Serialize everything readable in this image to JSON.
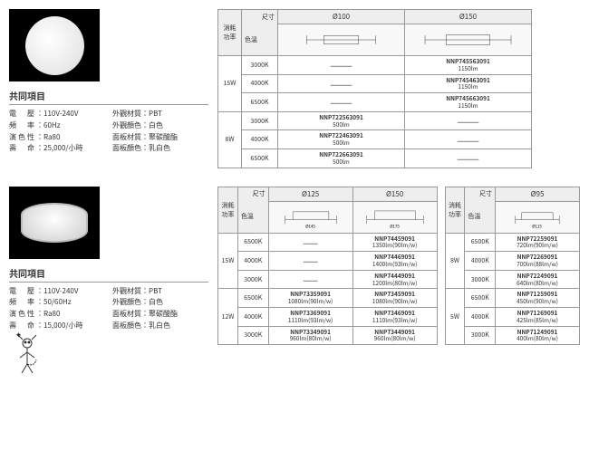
{
  "common_title": "共同項目",
  "specs1": {
    "voltage": {
      "label": "電　壓",
      "value": "110V-240V"
    },
    "freq": {
      "label": "頻　率",
      "value": "60Hz"
    },
    "cri": {
      "label": "演色性",
      "value": "Ra80"
    },
    "life": {
      "label": "壽　命",
      "value": "25,000/小時"
    },
    "mat_ext": {
      "label": "外觀材質",
      "value": "PBT"
    },
    "col_ext": {
      "label": "外觀顏色",
      "value": "白色"
    },
    "mat_panel": {
      "label": "面板材質",
      "value": "聚碳酸酯"
    },
    "col_panel": {
      "label": "面板顏色",
      "value": "乳白色"
    }
  },
  "specs2": {
    "voltage": {
      "label": "電　壓",
      "value": "110V-240V"
    },
    "freq": {
      "label": "頻　率",
      "value": "50/60Hz"
    },
    "cri": {
      "label": "演色性",
      "value": "Ra80"
    },
    "life": {
      "label": "壽　命",
      "value": "15,000/小時"
    },
    "mat_ext": {
      "label": "外觀材質",
      "value": "PBT"
    },
    "col_ext": {
      "label": "外觀顏色",
      "value": "白色"
    },
    "mat_panel": {
      "label": "面板材質",
      "value": "聚碳酸酯"
    },
    "col_panel": {
      "label": "面板顏色",
      "value": "乳白色"
    }
  },
  "hdr": {
    "power": "消耗\n功率",
    "size": "尺寸",
    "cct": "色溫"
  },
  "t1": {
    "cols": [
      "Ø100",
      "Ø150"
    ],
    "groups": [
      {
        "w": "15W",
        "rows": [
          {
            "cct": "3000K",
            "c": [
              "—",
              "NNP745563091",
              "1150lm"
            ]
          },
          {
            "cct": "4000K",
            "c": [
              "—",
              "NNP745463091",
              "1150lm"
            ]
          },
          {
            "cct": "6500K",
            "c": [
              "—",
              "NNP745663091",
              "1150lm"
            ]
          }
        ]
      },
      {
        "w": "8W",
        "rows": [
          {
            "cct": "3000K",
            "c": [
              "NNP722563091",
              "500lm",
              "—"
            ]
          },
          {
            "cct": "4000K",
            "c": [
              "NNP722463091",
              "500lm",
              "—"
            ]
          },
          {
            "cct": "6500K",
            "c": [
              "NNP722663091",
              "500lm",
              "—"
            ]
          }
        ]
      }
    ]
  },
  "t2a": {
    "cols": [
      "Ø125",
      "Ø150"
    ],
    "dia": [
      "Ø145",
      "Ø175"
    ],
    "groups": [
      {
        "w": "15W",
        "rows": [
          {
            "cct": "6500K",
            "c1": "—",
            "c2": "NNP74459091",
            "l2": "1350lm(90lm/w)"
          },
          {
            "cct": "4000K",
            "c1": "—",
            "c2": "NNP74469091",
            "l2": "1400lm(93lm/w)"
          },
          {
            "cct": "3000K",
            "c1": "—",
            "c2": "NNP74449091",
            "l2": "1200lm(80lm/w)"
          }
        ]
      },
      {
        "w": "12W",
        "rows": [
          {
            "cct": "6500K",
            "c1": "NNP73359091",
            "l1": "1080lm(90lm/w)",
            "c2": "NNP73459091",
            "l2": "1080lm(90lm/w)"
          },
          {
            "cct": "4000K",
            "c1": "NNP73369091",
            "l1": "1110lm(93lm/w)",
            "c2": "NNP73469091",
            "l2": "1110lm(93lm/w)"
          },
          {
            "cct": "3000K",
            "c1": "NNP73349091",
            "l1": "960lm(80lm/w)",
            "c2": "NNP73449091",
            "l2": "960lm(80lm/w)"
          }
        ]
      }
    ]
  },
  "t2b": {
    "cols": [
      "Ø95"
    ],
    "dia": [
      "Ø115"
    ],
    "groups": [
      {
        "w": "8W",
        "rows": [
          {
            "cct": "6500K",
            "c1": "NNP72259091",
            "l1": "720lm(90lm/w)"
          },
          {
            "cct": "4000K",
            "c1": "NNP72269091",
            "l1": "700lm(88lm/w)"
          },
          {
            "cct": "3000K",
            "c1": "NNP72249091",
            "l1": "640lm(80lm/w)"
          }
        ]
      },
      {
        "w": "5W",
        "rows": [
          {
            "cct": "6500K",
            "c1": "NNP71259091",
            "l1": "450lm(90lm/w)"
          },
          {
            "cct": "4000K",
            "c1": "NNP71269091",
            "l1": "425lm(85lm/w)"
          },
          {
            "cct": "3000K",
            "c1": "NNP71249091",
            "l1": "400lm(80lm/w)"
          }
        ]
      }
    ]
  }
}
